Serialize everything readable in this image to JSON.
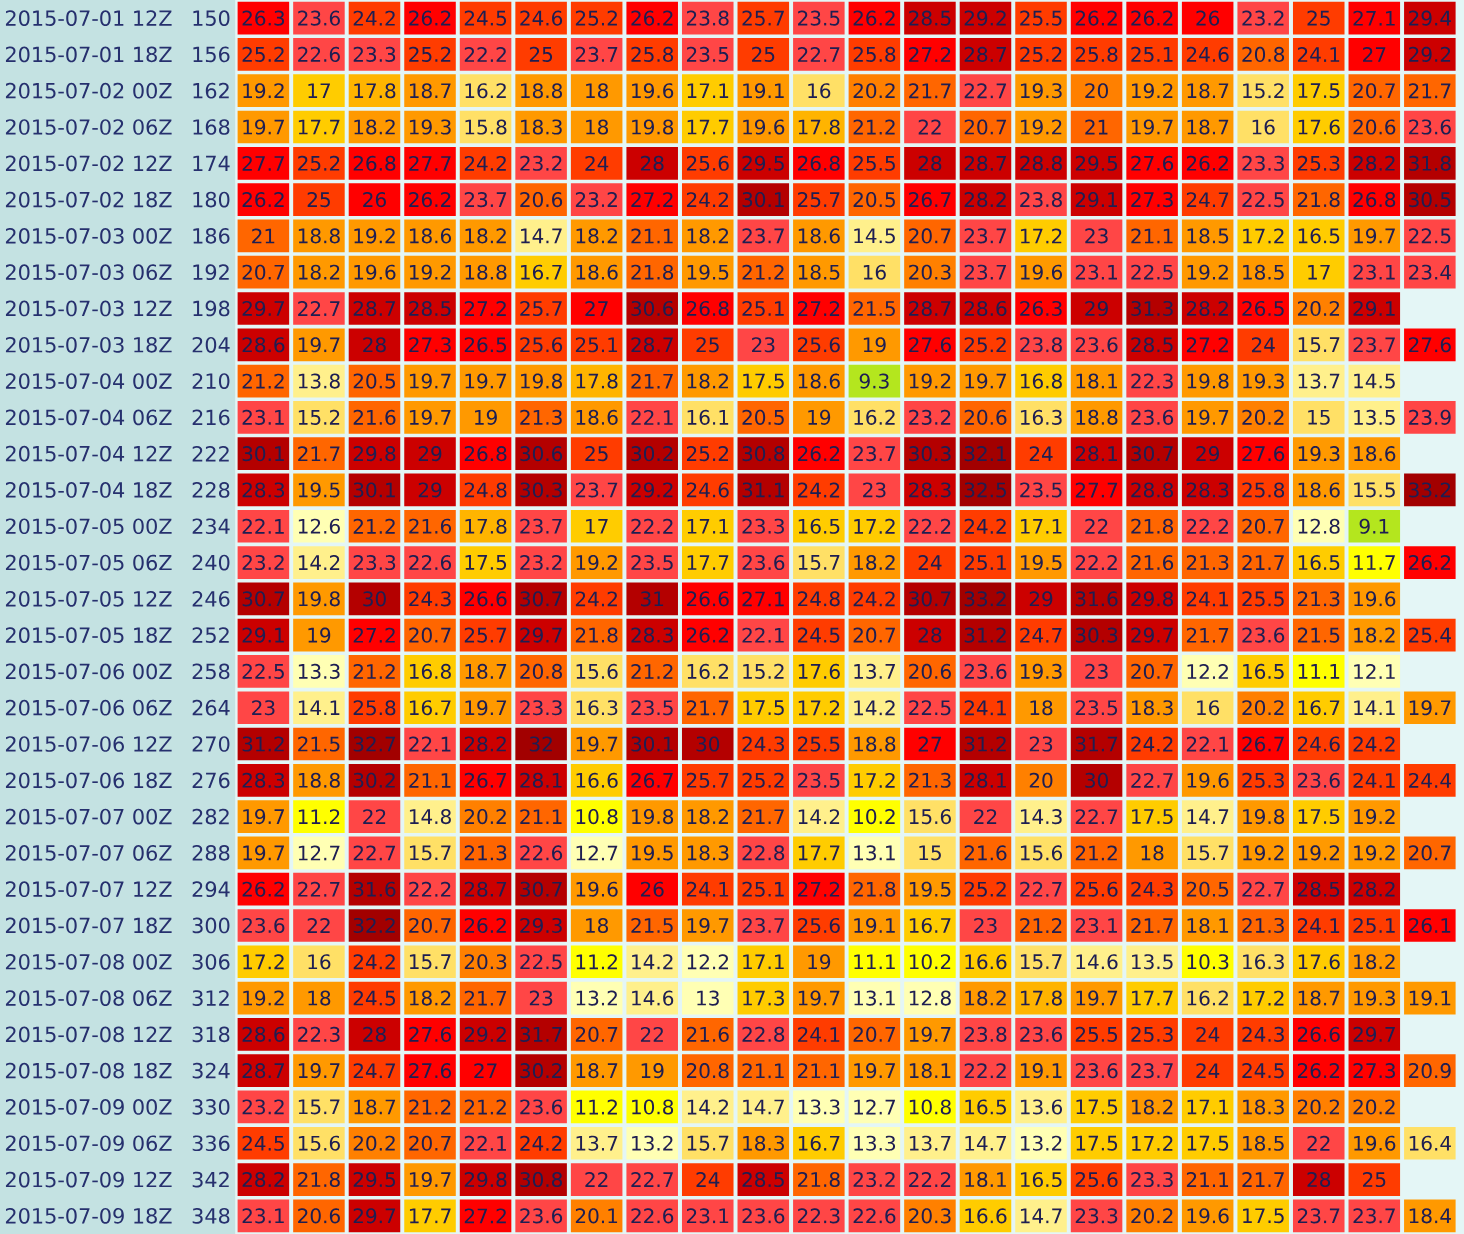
{
  "chart_data": {
    "type": "heatmap",
    "categories": [
      null,
      null,
      null,
      null,
      null,
      null,
      null,
      null,
      null,
      null,
      null,
      null,
      null,
      null,
      null,
      null,
      null,
      null,
      null,
      null,
      null,
      null
    ],
    "y_categories": [
      "2015-07-01 12Z",
      "2015-07-01 18Z",
      "2015-07-02 00Z",
      "2015-07-02 06Z",
      "2015-07-02 12Z",
      "2015-07-02 18Z",
      "2015-07-03 00Z",
      "2015-07-03 06Z",
      "2015-07-03 12Z",
      "2015-07-03 18Z",
      "2015-07-04 00Z",
      "2015-07-04 06Z",
      "2015-07-04 12Z",
      "2015-07-04 18Z",
      "2015-07-05 00Z",
      "2015-07-05 06Z",
      "2015-07-05 12Z",
      "2015-07-05 18Z",
      "2015-07-06 00Z",
      "2015-07-06 06Z",
      "2015-07-06 12Z",
      "2015-07-06 18Z",
      "2015-07-07 00Z",
      "2015-07-07 06Z",
      "2015-07-07 12Z",
      "2015-07-07 18Z",
      "2015-07-08 00Z",
      "2015-07-08 06Z",
      "2015-07-08 12Z",
      "2015-07-08 18Z",
      "2015-07-09 00Z",
      "2015-07-09 06Z",
      "2015-07-09 12Z",
      "2015-07-09 18Z"
    ],
    "y2_categories": [
      "150",
      "156",
      "162",
      "168",
      "174",
      "180",
      "186",
      "192",
      "198",
      "204",
      "210",
      "216",
      "222",
      "228",
      "234",
      "240",
      "246",
      "252",
      "258",
      "264",
      "270",
      "276",
      "282",
      "288",
      "294",
      "300",
      "306",
      "312",
      "318",
      "324",
      "330",
      "336",
      "342",
      "348"
    ],
    "cells": [
      [
        26.3,
        23.6,
        24.2,
        26.2,
        24.5,
        24.6,
        25.2,
        26.2,
        23.8,
        25.7,
        23.5,
        26.2,
        28.5,
        29.2,
        25.5,
        26.2,
        26.2,
        26,
        23.2,
        25,
        27.1,
        29.4
      ],
      [
        25.2,
        22.6,
        23.3,
        25.2,
        22.2,
        25,
        23.7,
        25.8,
        23.5,
        25,
        22.7,
        25.8,
        27.2,
        28.7,
        25.2,
        25.8,
        25.1,
        24.6,
        20.8,
        24.1,
        27,
        29.2
      ],
      [
        19.2,
        17,
        17.8,
        18.7,
        16.2,
        18.8,
        18,
        19.6,
        17.1,
        19.1,
        16,
        20.2,
        21.7,
        22.7,
        19.3,
        20,
        19.2,
        18.7,
        15.2,
        17.5,
        20.7,
        21.7
      ],
      [
        19.7,
        17.7,
        18.2,
        19.3,
        15.8,
        18.3,
        18,
        19.8,
        17.7,
        19.6,
        17.8,
        21.2,
        22,
        20.7,
        19.2,
        21,
        19.7,
        18.7,
        16,
        17.6,
        20.6,
        23.6
      ],
      [
        27.7,
        25.2,
        26.8,
        27.7,
        24.2,
        23.2,
        24,
        28,
        25.6,
        29.5,
        26.8,
        25.5,
        28,
        28.7,
        28.8,
        29.5,
        27.6,
        26.2,
        23.3,
        25.3,
        28.2,
        31.8
      ],
      [
        26.2,
        25,
        26,
        26.2,
        23.7,
        20.6,
        23.2,
        27.2,
        24.2,
        30.1,
        25.7,
        20.5,
        26.7,
        28.2,
        23.8,
        29.1,
        27.3,
        24.7,
        22.5,
        21.8,
        26.8,
        30.5
      ],
      [
        21,
        18.8,
        19.2,
        18.6,
        18.2,
        14.7,
        18.2,
        21.1,
        18.2,
        23.7,
        18.6,
        14.5,
        20.7,
        23.7,
        17.2,
        23,
        21.1,
        18.5,
        17.2,
        16.5,
        19.7,
        22.5
      ],
      [
        20.7,
        18.2,
        19.6,
        19.2,
        18.8,
        16.7,
        18.6,
        21.8,
        19.5,
        21.2,
        18.5,
        16,
        20.3,
        23.7,
        19.6,
        23.1,
        22.5,
        19.2,
        18.5,
        17,
        23.1,
        23.4
      ],
      [
        29.7,
        22.7,
        28.7,
        28.5,
        27.2,
        25.7,
        27,
        30.6,
        26.8,
        25.1,
        27.2,
        21.5,
        28.7,
        28.6,
        26.3,
        29,
        31.3,
        28.2,
        26.5,
        20.2,
        29.1,
        null
      ],
      [
        28.6,
        19.7,
        28,
        27.3,
        26.5,
        25.6,
        25.1,
        28.7,
        25,
        23,
        25.6,
        19,
        27.6,
        25.2,
        23.8,
        23.6,
        28.5,
        27.2,
        24,
        15.7,
        23.7,
        27.6
      ],
      [
        21.2,
        13.8,
        20.5,
        19.7,
        19.7,
        19.8,
        17.8,
        21.7,
        18.2,
        17.5,
        18.6,
        9.3,
        19.2,
        19.7,
        16.8,
        18.1,
        22.3,
        19.8,
        19.3,
        13.7,
        14.5,
        null
      ],
      [
        23.1,
        15.2,
        21.6,
        19.7,
        19,
        21.3,
        18.6,
        22.1,
        16.1,
        20.5,
        19,
        16.2,
        23.2,
        20.6,
        16.3,
        18.8,
        23.6,
        19.7,
        20.2,
        15,
        13.5,
        23.9
      ],
      [
        30.1,
        21.7,
        29.8,
        29,
        26.8,
        30.6,
        25,
        30.2,
        25.2,
        30.8,
        26.2,
        23.7,
        30.3,
        32.1,
        24,
        28.1,
        30.7,
        29,
        27.6,
        19.3,
        18.6,
        null
      ],
      [
        28.3,
        19.5,
        30.1,
        29,
        24.8,
        30.3,
        23.7,
        29.2,
        24.6,
        31.1,
        24.2,
        23,
        28.3,
        32.5,
        23.5,
        27.7,
        28.8,
        28.3,
        25.8,
        18.6,
        15.5,
        33.2
      ],
      [
        22.1,
        12.6,
        21.2,
        21.6,
        17.8,
        23.7,
        17,
        22.2,
        17.1,
        23.3,
        16.5,
        17.2,
        22.2,
        24.2,
        17.1,
        22,
        21.8,
        22.2,
        20.7,
        12.8,
        9.1,
        null
      ],
      [
        23.2,
        14.2,
        23.3,
        22.6,
        17.5,
        23.2,
        19.2,
        23.5,
        17.7,
        23.6,
        15.7,
        18.2,
        24,
        25.1,
        19.5,
        22.2,
        21.6,
        21.3,
        21.7,
        16.5,
        11.7,
        26.2
      ],
      [
        30.7,
        19.8,
        30,
        24.3,
        26.6,
        30.7,
        24.2,
        31,
        26.6,
        27.1,
        24.8,
        24.2,
        30.7,
        33.2,
        29,
        31.6,
        29.8,
        24.1,
        25.5,
        21.3,
        19.6,
        null
      ],
      [
        29.1,
        19,
        27.2,
        20.7,
        25.7,
        29.7,
        21.8,
        28.3,
        26.2,
        22.1,
        24.5,
        20.7,
        28,
        31.2,
        24.7,
        30.3,
        29.7,
        21.7,
        23.6,
        21.5,
        18.2,
        25.4
      ],
      [
        22.5,
        13.3,
        21.2,
        16.8,
        18.7,
        20.8,
        15.6,
        21.2,
        16.2,
        15.2,
        17.6,
        13.7,
        20.6,
        23.6,
        19.3,
        23,
        20.7,
        12.2,
        16.5,
        11.1,
        12.1,
        null
      ],
      [
        23,
        14.1,
        25.8,
        16.7,
        19.7,
        23.3,
        16.3,
        23.5,
        21.7,
        17.5,
        17.2,
        14.2,
        22.5,
        24.1,
        18,
        23.5,
        18.3,
        16,
        20.2,
        16.7,
        14.1,
        19.7
      ],
      [
        31.2,
        21.5,
        32.7,
        22.1,
        28.2,
        32,
        19.7,
        30.1,
        30,
        24.3,
        25.5,
        18.8,
        27,
        31.2,
        23,
        31.7,
        24.2,
        22.1,
        26.7,
        24.6,
        24.2,
        null
      ],
      [
        28.3,
        18.8,
        30.2,
        21.1,
        26.7,
        28.1,
        16.6,
        26.7,
        25.7,
        25.2,
        23.5,
        17.2,
        21.3,
        28.1,
        20,
        30,
        22.7,
        19.6,
        25.3,
        23.6,
        24.1,
        24.4
      ],
      [
        19.7,
        11.2,
        22,
        14.8,
        20.2,
        21.1,
        10.8,
        19.8,
        18.2,
        21.7,
        14.2,
        10.2,
        15.6,
        22,
        14.3,
        22.7,
        17.5,
        14.7,
        19.8,
        17.5,
        19.2,
        null
      ],
      [
        19.7,
        12.7,
        22.7,
        15.7,
        21.3,
        22.6,
        12.7,
        19.5,
        18.3,
        22.8,
        17.7,
        13.1,
        15,
        21.6,
        15.6,
        21.2,
        18,
        15.7,
        19.2,
        19.2,
        19.2,
        20.7
      ],
      [
        26.2,
        22.7,
        31.6,
        22.2,
        28.7,
        30.7,
        19.6,
        26,
        24.1,
        25.1,
        27.2,
        21.8,
        19.5,
        25.2,
        22.7,
        25.6,
        24.3,
        20.5,
        22.7,
        28.5,
        28.2,
        null
      ],
      [
        23.6,
        22,
        32.2,
        20.7,
        26.2,
        29.3,
        18,
        21.5,
        19.7,
        23.7,
        25.6,
        19.1,
        16.7,
        23,
        21.2,
        23.1,
        21.7,
        18.1,
        21.3,
        24.1,
        25.1,
        26.1
      ],
      [
        17.2,
        16,
        24.2,
        15.7,
        20.3,
        22.5,
        11.2,
        14.2,
        12.2,
        17.1,
        19,
        11.1,
        10.2,
        16.6,
        15.7,
        14.6,
        13.5,
        10.3,
        16.3,
        17.6,
        18.2,
        null
      ],
      [
        19.2,
        18,
        24.5,
        18.2,
        21.7,
        23,
        13.2,
        14.6,
        13,
        17.3,
        19.7,
        13.1,
        12.8,
        18.2,
        17.8,
        19.7,
        17.7,
        16.2,
        17.2,
        18.7,
        19.3,
        19.1
      ],
      [
        28.6,
        22.3,
        28,
        27.6,
        29.2,
        31.7,
        20.7,
        22,
        21.6,
        22.8,
        24.1,
        20.7,
        19.7,
        23.8,
        23.6,
        25.5,
        25.3,
        24,
        24.3,
        26.6,
        29.7,
        null
      ],
      [
        28.7,
        19.7,
        24.7,
        27.6,
        27,
        30.2,
        18.7,
        19,
        20.8,
        21.1,
        21.1,
        19.7,
        18.1,
        22.2,
        19.1,
        23.6,
        23.7,
        24,
        24.5,
        26.2,
        27.3,
        20.9
      ],
      [
        23.2,
        15.7,
        18.7,
        21.2,
        21.2,
        23.6,
        11.2,
        10.8,
        14.2,
        14.7,
        13.3,
        12.7,
        10.8,
        16.5,
        13.6,
        17.5,
        18.2,
        17.1,
        18.3,
        20.2,
        20.2,
        null
      ],
      [
        24.5,
        15.6,
        20.2,
        20.7,
        22.1,
        24.2,
        13.7,
        13.2,
        15.7,
        18.3,
        16.7,
        13.3,
        13.7,
        14.7,
        13.2,
        17.5,
        17.2,
        17.5,
        18.5,
        22,
        19.6,
        16.4
      ],
      [
        28.2,
        21.8,
        29.5,
        19.7,
        29.8,
        30.8,
        22,
        22.7,
        24,
        28.5,
        21.8,
        23.2,
        22.2,
        18.1,
        16.5,
        25.6,
        23.3,
        21.1,
        21.7,
        28,
        25,
        null
      ],
      [
        23.1,
        20.6,
        29.7,
        17.7,
        27.2,
        23.6,
        20.1,
        22.6,
        23.1,
        23.6,
        22.3,
        22.6,
        20.3,
        16.6,
        14.7,
        23.3,
        20.2,
        19.6,
        17.5,
        23.7,
        23.7,
        18.4
      ]
    ],
    "data_labels": true
  }
}
